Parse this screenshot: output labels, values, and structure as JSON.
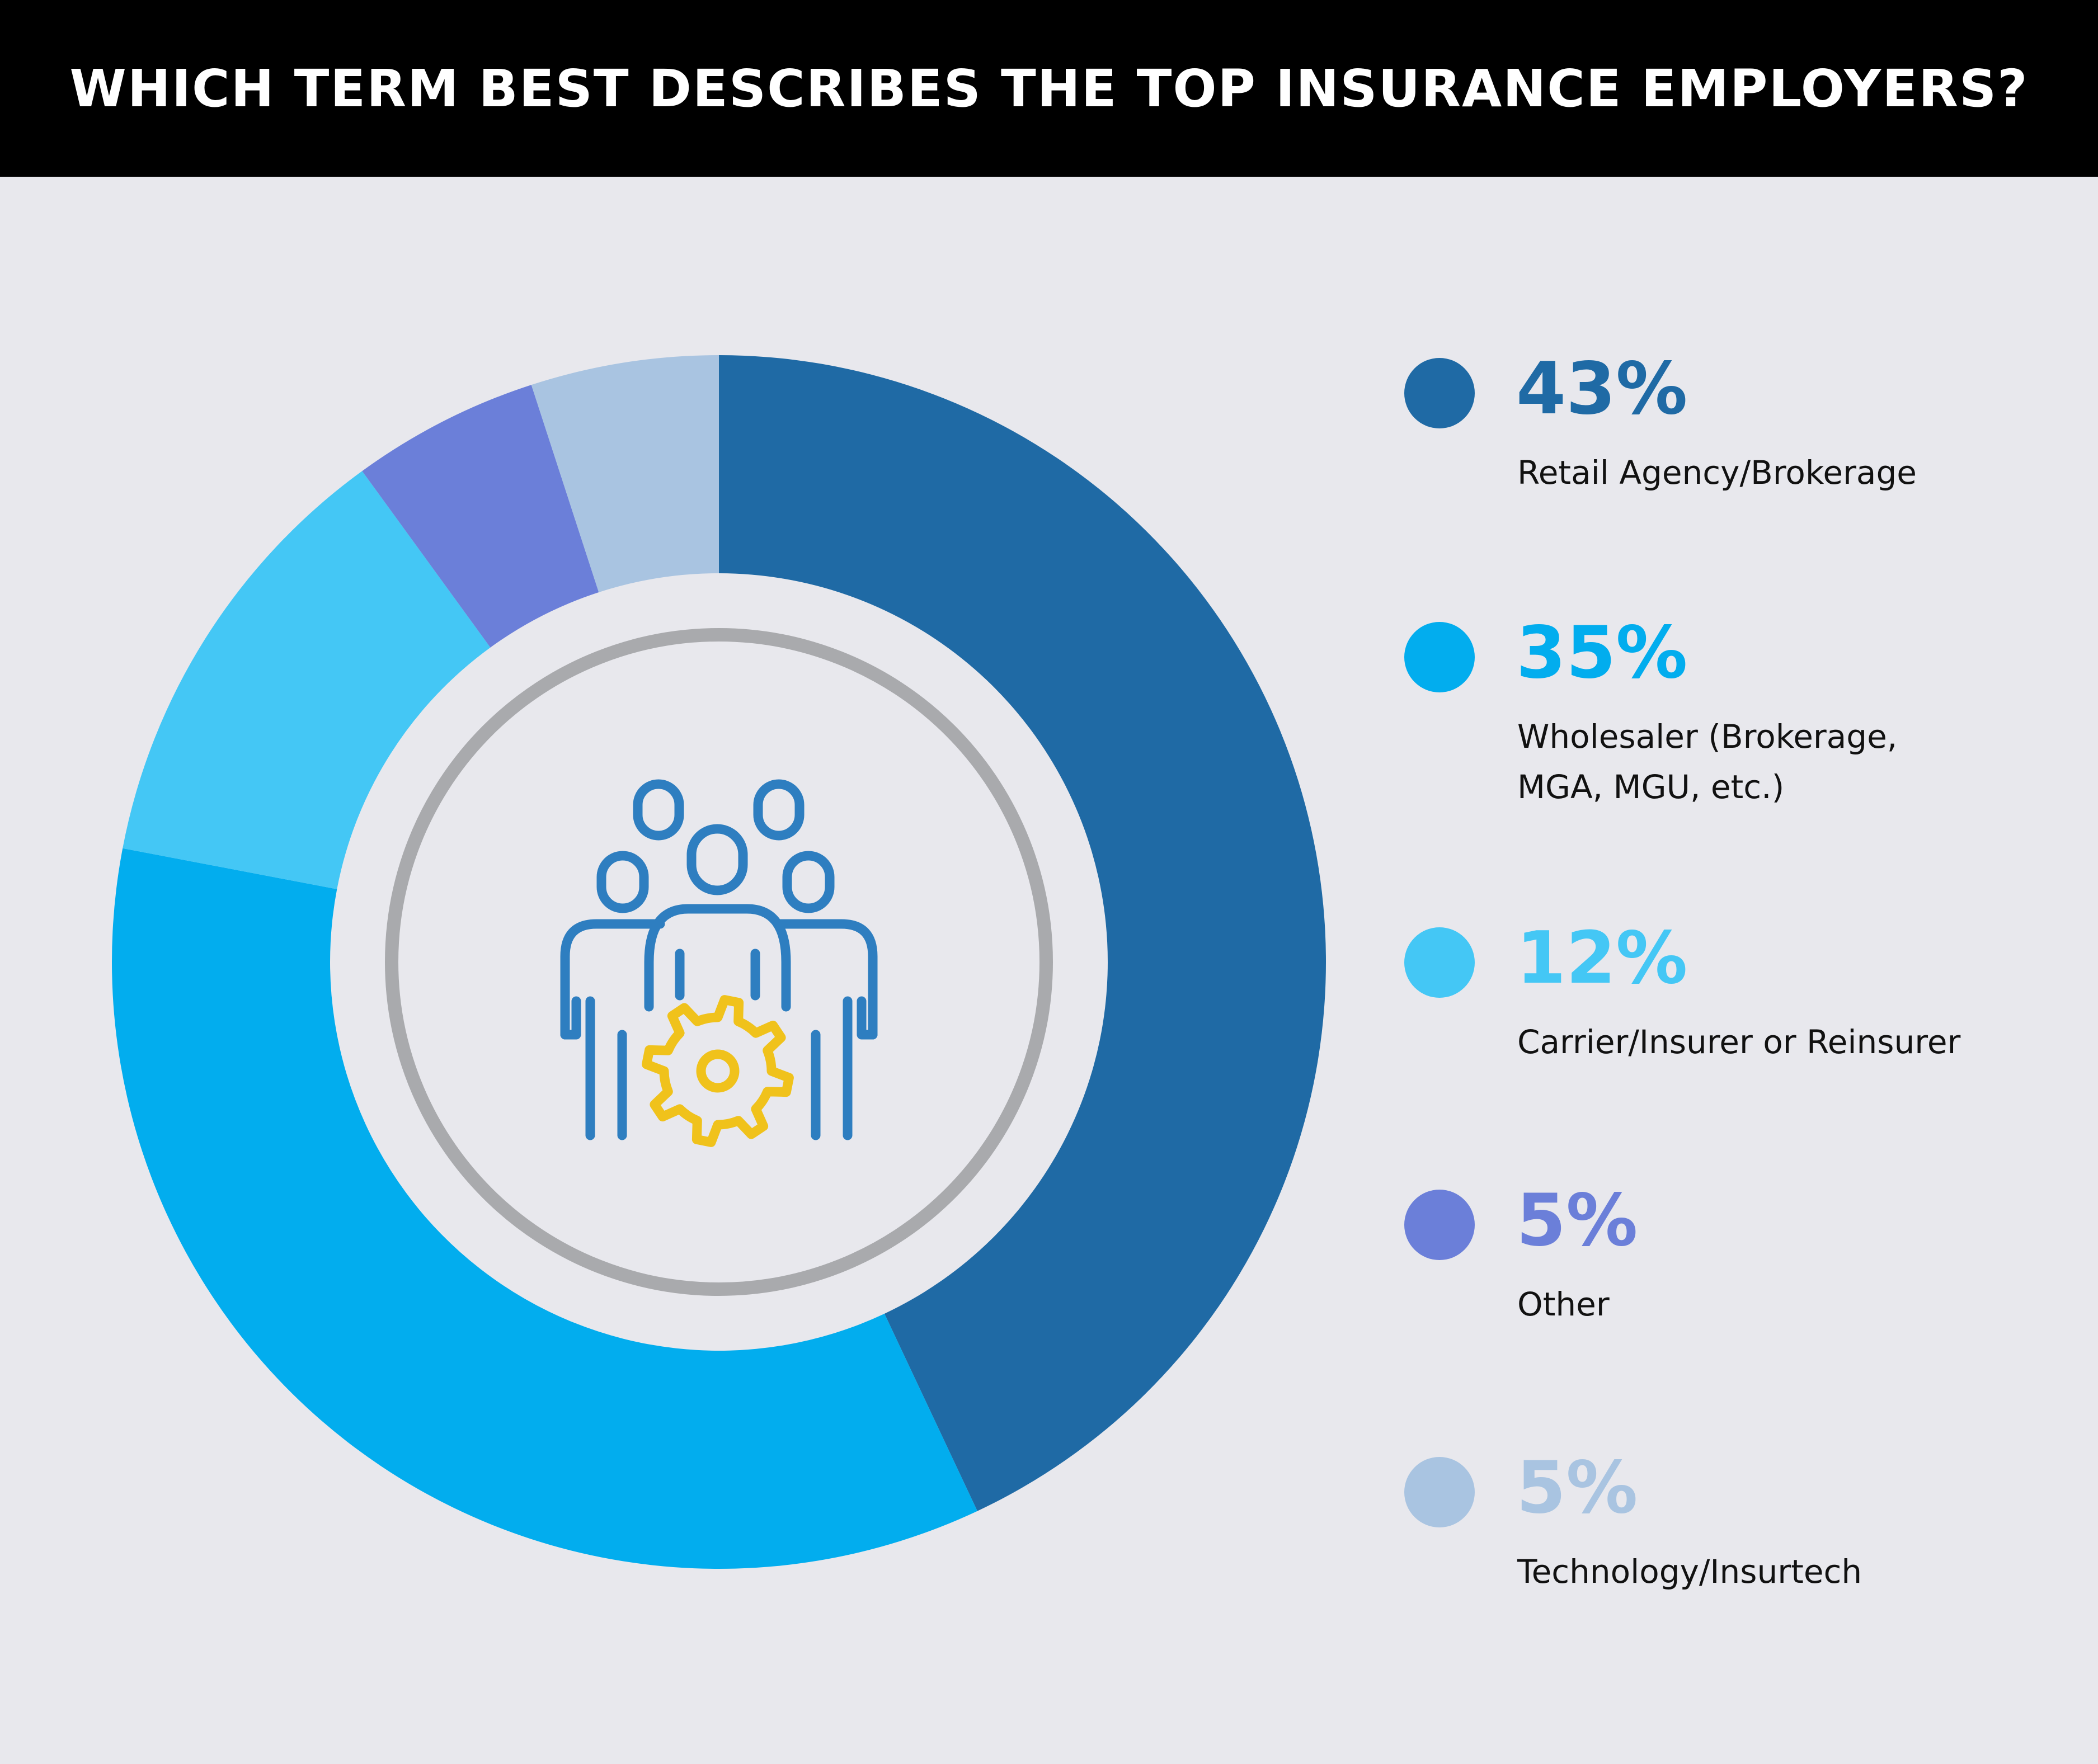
{
  "header": {
    "title": "WHICH TERM BEST DESCRIBES THE TOP INSURANCE EMPLOYERS?"
  },
  "center_icon": {
    "icon": "team-gear-icon",
    "people_color": "#2e7ec0",
    "gear_color": "#f0c21b",
    "ring_color": "#a9aaad"
  },
  "chart_data": {
    "type": "pie",
    "donut": true,
    "title": "WHICH TERM BEST DESCRIBES THE TOP INSURANCE EMPLOYERS?",
    "unit": "%",
    "legend_placement": "right",
    "slices": [
      {
        "label": "Retail Agency/Brokerage",
        "value": 43,
        "display": "43%",
        "color": "#1f6aa5"
      },
      {
        "label": "Wholesaler (Brokerage, MGA, MGU, etc.)",
        "value": 35,
        "display": "35%",
        "color": "#02adee"
      },
      {
        "label": "Carrier/Insurer or Reinsurer",
        "value": 12,
        "display": "12%",
        "color": "#44c7f5"
      },
      {
        "label": "Other",
        "value": 5,
        "display": "5%",
        "color": "#6b7fd9"
      },
      {
        "label": "Technology/Insurtech",
        "value": 5,
        "display": "5%",
        "color": "#a9c4e1"
      }
    ]
  },
  "legend": {
    "items": [
      {
        "value": "43%",
        "label": "Retail Agency/Brokerage"
      },
      {
        "value": "35%",
        "label": "Wholesaler (Brokerage, MGA, MGU, etc.)"
      },
      {
        "value": "12%",
        "label": "Carrier/Insurer or Reinsurer"
      },
      {
        "value": "5%",
        "label": "Other"
      },
      {
        "value": "5%",
        "label": "Technology/Insurtech"
      }
    ]
  }
}
